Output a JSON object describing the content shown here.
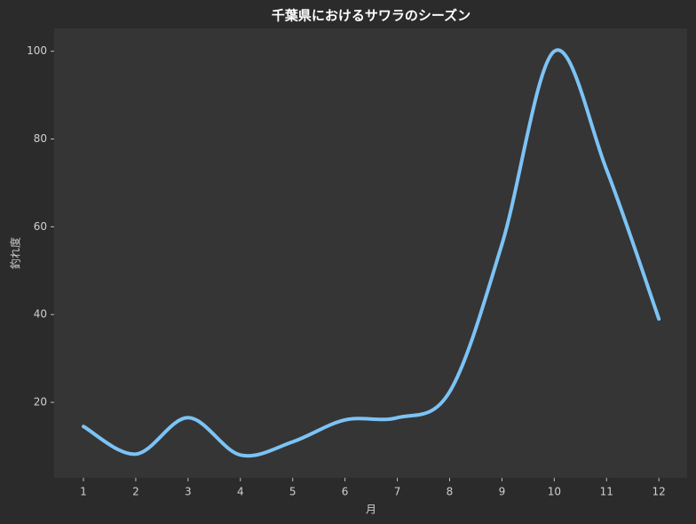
{
  "chart_data": {
    "type": "line",
    "title": "千葉県におけるサワラのシーズン",
    "x_label": "月",
    "y_label": "釣れ度",
    "x": [
      1,
      2,
      3,
      4,
      5,
      6,
      7,
      8,
      9,
      10,
      11,
      12
    ],
    "series": [
      {
        "name": "釣れ度",
        "color": "#7cc3f5",
        "values": [
          14.5,
          8.2,
          16.5,
          8,
          11,
          16,
          16.5,
          22.4,
          56,
          100,
          73,
          39
        ]
      }
    ],
    "xlim": [
      0.44,
      12.54
    ],
    "ylim": [
      2.8,
      105.2
    ],
    "xticks": [
      1,
      2,
      3,
      4,
      5,
      6,
      7,
      8,
      9,
      10,
      11,
      12
    ],
    "yticks": [
      20,
      40,
      60,
      80,
      100
    ],
    "grid": false
  }
}
